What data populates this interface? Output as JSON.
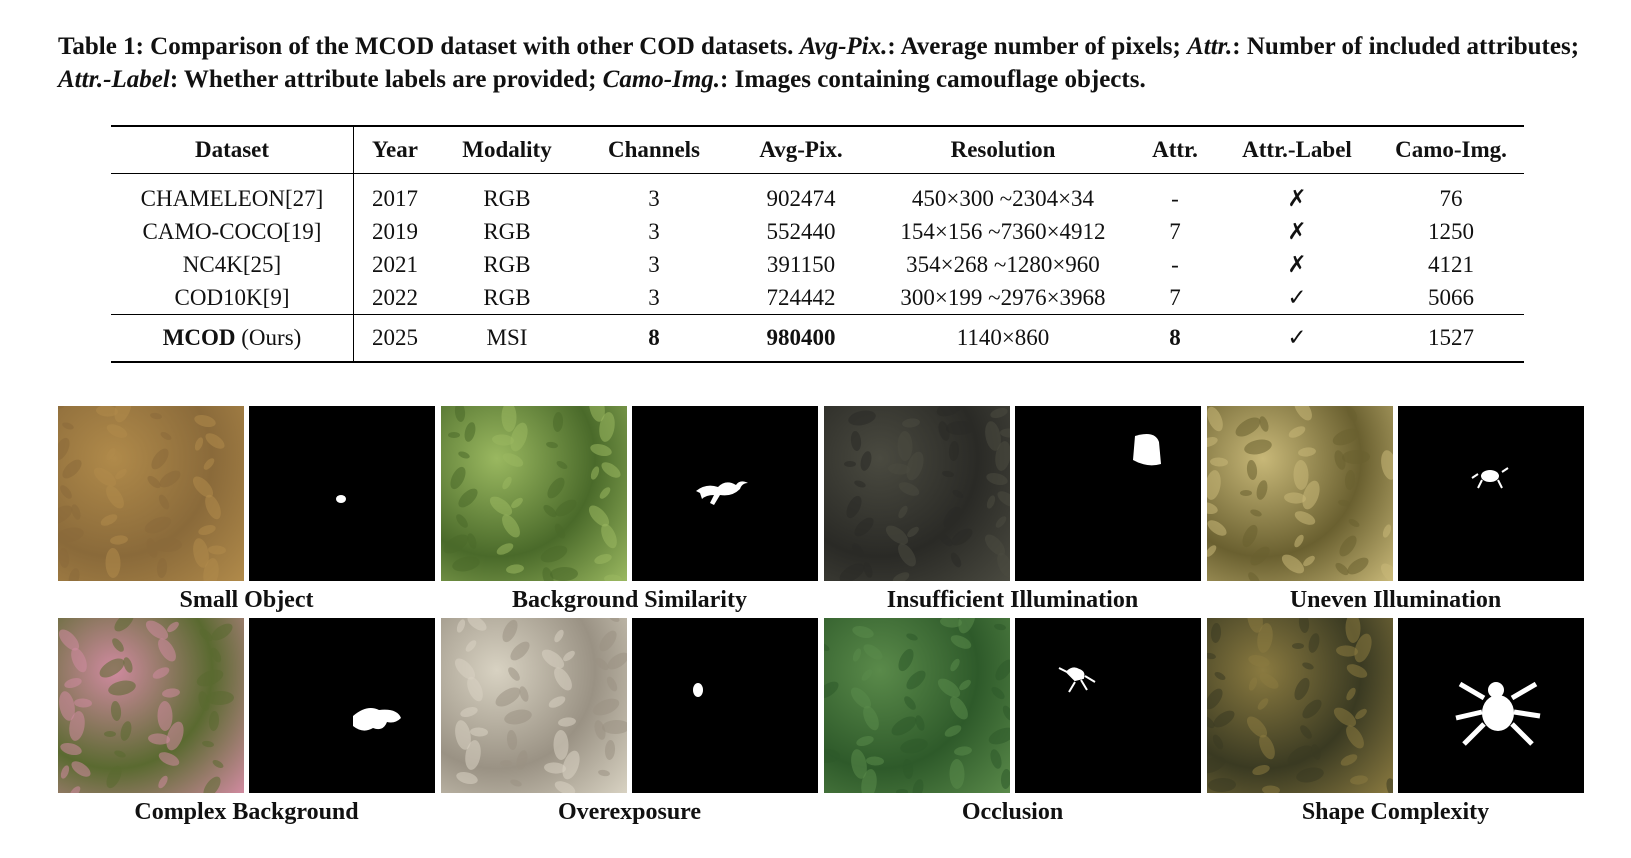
{
  "caption": {
    "prefix": "Table 1: Comparison of the MCOD dataset with other COD datasets. ",
    "t1": "Avg-Pix.",
    "d1": ": Average number of pixels; ",
    "t2": "Attr.",
    "d2": ": Number of included attributes; ",
    "t3": "Attr.-Label",
    "d3": ": Whether attribute labels are provided; ",
    "t4": "Camo-Img.",
    "d4": ": Images containing camouflage objects."
  },
  "table": {
    "headers": [
      "Dataset",
      "Year",
      "Modality",
      "Channels",
      "Avg-Pix.",
      "Resolution",
      "Attr.",
      "Attr.-Label",
      "Camo-Img."
    ],
    "rows": [
      [
        "CHAMELEON[27]",
        "2017",
        "RGB",
        "3",
        "902474",
        "450×300 ~2304×34",
        "-",
        "✗",
        "76"
      ],
      [
        "CAMO-COCO[19]",
        "2019",
        "RGB",
        "3",
        "552440",
        "154×156 ~7360×4912",
        "7",
        "✗",
        "1250"
      ],
      [
        "NC4K[25]",
        "2021",
        "RGB",
        "3",
        "391150",
        "354×268 ~1280×960",
        "-",
        "✗",
        "4121"
      ],
      [
        "COD10K[9]",
        "2022",
        "RGB",
        "3",
        "724442",
        "300×199 ~2976×3968",
        "7",
        "✓",
        "5066"
      ]
    ],
    "ours": {
      "name_bold": "MCOD",
      "name_rest": " (Ours)",
      "year": "2025",
      "modality": "MSI",
      "channels": "8",
      "avg_pix": "980400",
      "resolution": "1140×860",
      "attr": "8",
      "attr_label": "✓",
      "camo_img": "1527"
    }
  },
  "examples": [
    {
      "label": "Small Object",
      "photo": "#8a6a3a",
      "photo2": "#b08a4a"
    },
    {
      "label": "Background Similarity",
      "photo": "#4a6a2a",
      "photo2": "#9ab860"
    },
    {
      "label": "Insufficient Illumination",
      "photo": "#2a2a26",
      "photo2": "#4a4a40"
    },
    {
      "label": "Uneven Illumination",
      "photo": "#6a6030",
      "photo2": "#c8b878"
    },
    {
      "label": "Complex Background",
      "photo": "#5a6a30",
      "photo2": "#d08aa0"
    },
    {
      "label": "Overexposure",
      "photo": "#9a9284",
      "photo2": "#d8d2c2"
    },
    {
      "label": "Occlusion",
      "photo": "#2e5a2a",
      "photo2": "#5a8a4a"
    },
    {
      "label": "Shape Complexity",
      "photo": "#3a3a22",
      "photo2": "#8a7a40"
    }
  ]
}
